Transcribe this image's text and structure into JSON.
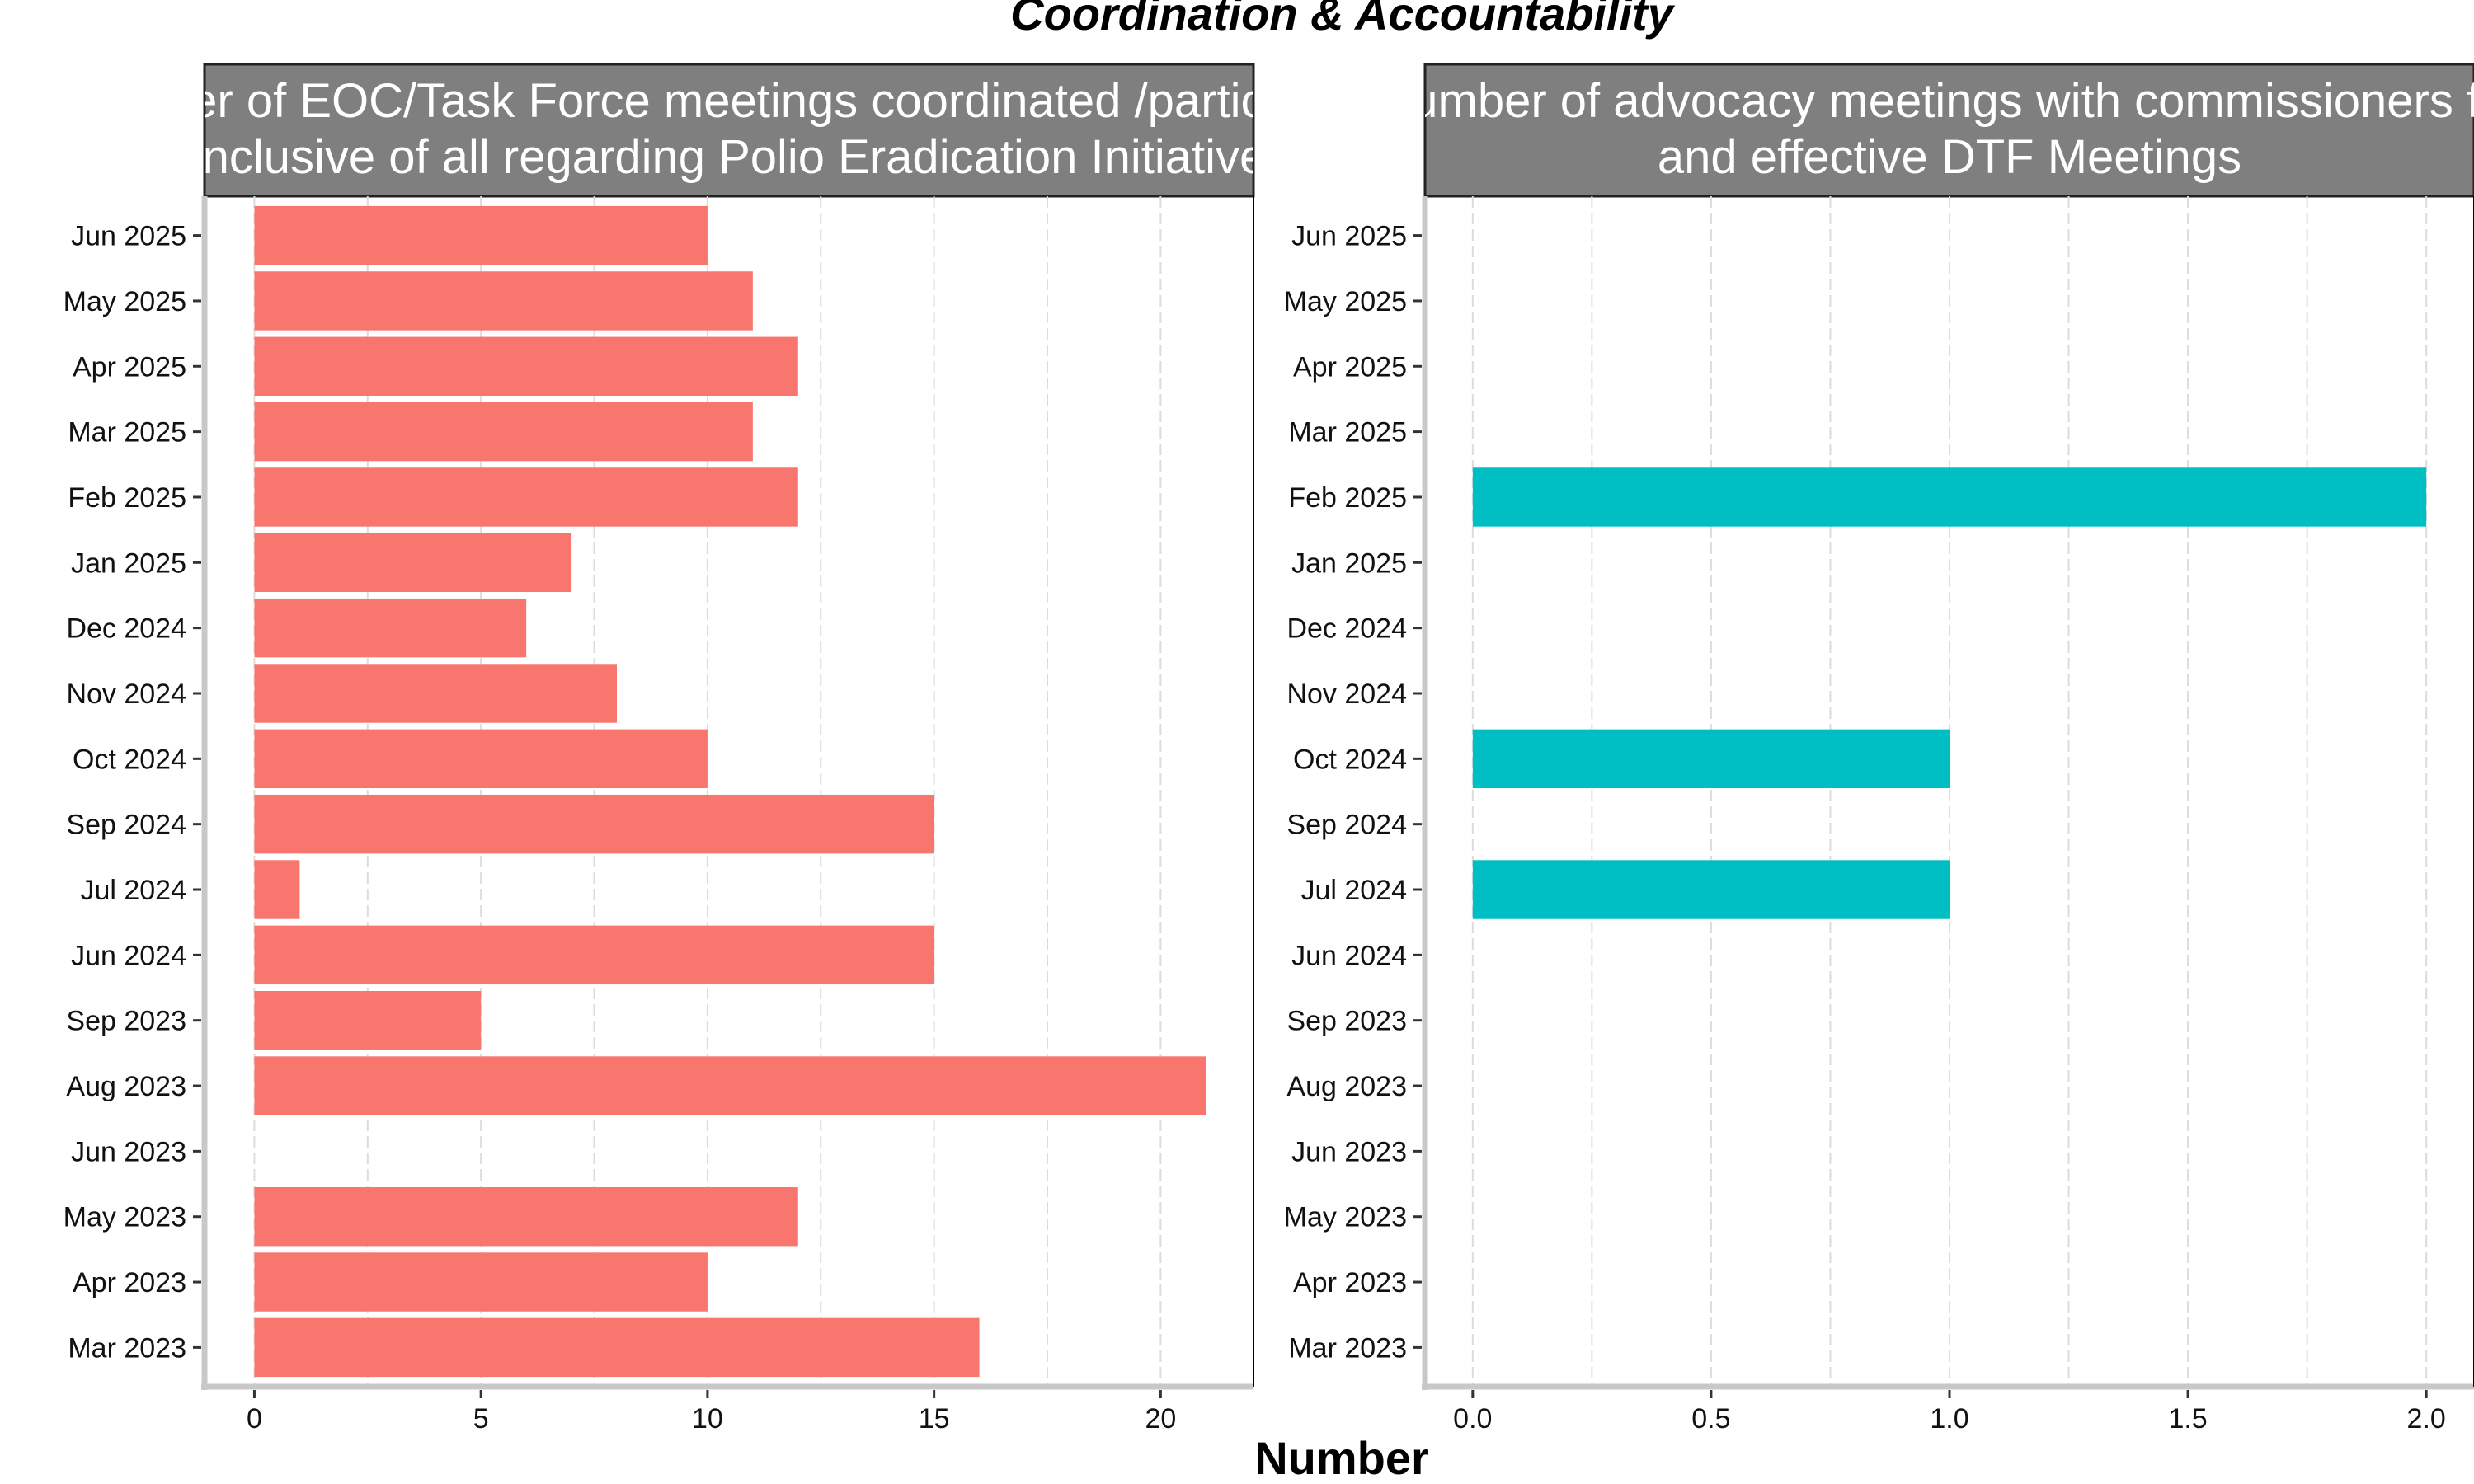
{
  "chart_data": {
    "title": "Coordination & Accountability",
    "xlabel": "Number",
    "type": "bar",
    "months": [
      "Mar 2023",
      "Apr 2023",
      "May 2023",
      "Jun 2023",
      "Aug 2023",
      "Sep 2023",
      "Jun 2024",
      "Jul 2024",
      "Sep 2024",
      "Oct 2024",
      "Nov 2024",
      "Dec 2024",
      "Jan 2025",
      "Feb 2025",
      "Mar 2025",
      "Apr 2025",
      "May 2025",
      "Jun 2025"
    ],
    "panels": [
      {
        "strip_lines": [
          "Number of EOC/Task Force meetings coordinated /participated",
          "(inclusive of all regarding Polio Eradication Initiative)"
        ],
        "strip_visible": [
          "EOC/Task Force meetings coordinated /partic",
          "clusive of all regarding Polio Eradication Initiati"
        ],
        "color": "#F8766D",
        "xlim": [
          -1.1,
          22.05
        ],
        "xticks": [
          0,
          5,
          10,
          15,
          20
        ],
        "xtick_labels": [
          "0",
          "5",
          "10",
          "15",
          "20"
        ],
        "values": {
          "Mar 2023": 16,
          "Apr 2023": 10,
          "May 2023": 12,
          "Aug 2023": 21,
          "Sep 2023": 5,
          "Jun 2024": 15,
          "Jul 2024": 1,
          "Sep 2024": 15,
          "Oct 2024": 10,
          "Nov 2024": 8,
          "Dec 2024": 6,
          "Jan 2025": 7,
          "Feb 2025": 12,
          "Mar 2025": 11,
          "Apr 2025": 12,
          "May 2025": 11,
          "Jun 2025": 10
        }
      },
      {
        "strip_lines": [
          "Number of advocacy meetings with commissioners for",
          "and effective DTF Meetings"
        ],
        "strip_visible": [
          "er of advocacy meetings with commissioners fo",
          "and effective DTF Meetings"
        ],
        "color": "#00BFC4",
        "xlim": [
          -0.1,
          2.1
        ],
        "xticks": [
          0,
          0.5,
          1,
          1.5,
          2
        ],
        "xtick_labels": [
          "0.0",
          "0.5",
          "1.0",
          "1.5",
          "2.0"
        ],
        "values": {
          "Jul 2024": 1,
          "Oct 2024": 1,
          "Feb 2025": 2
        }
      }
    ]
  }
}
